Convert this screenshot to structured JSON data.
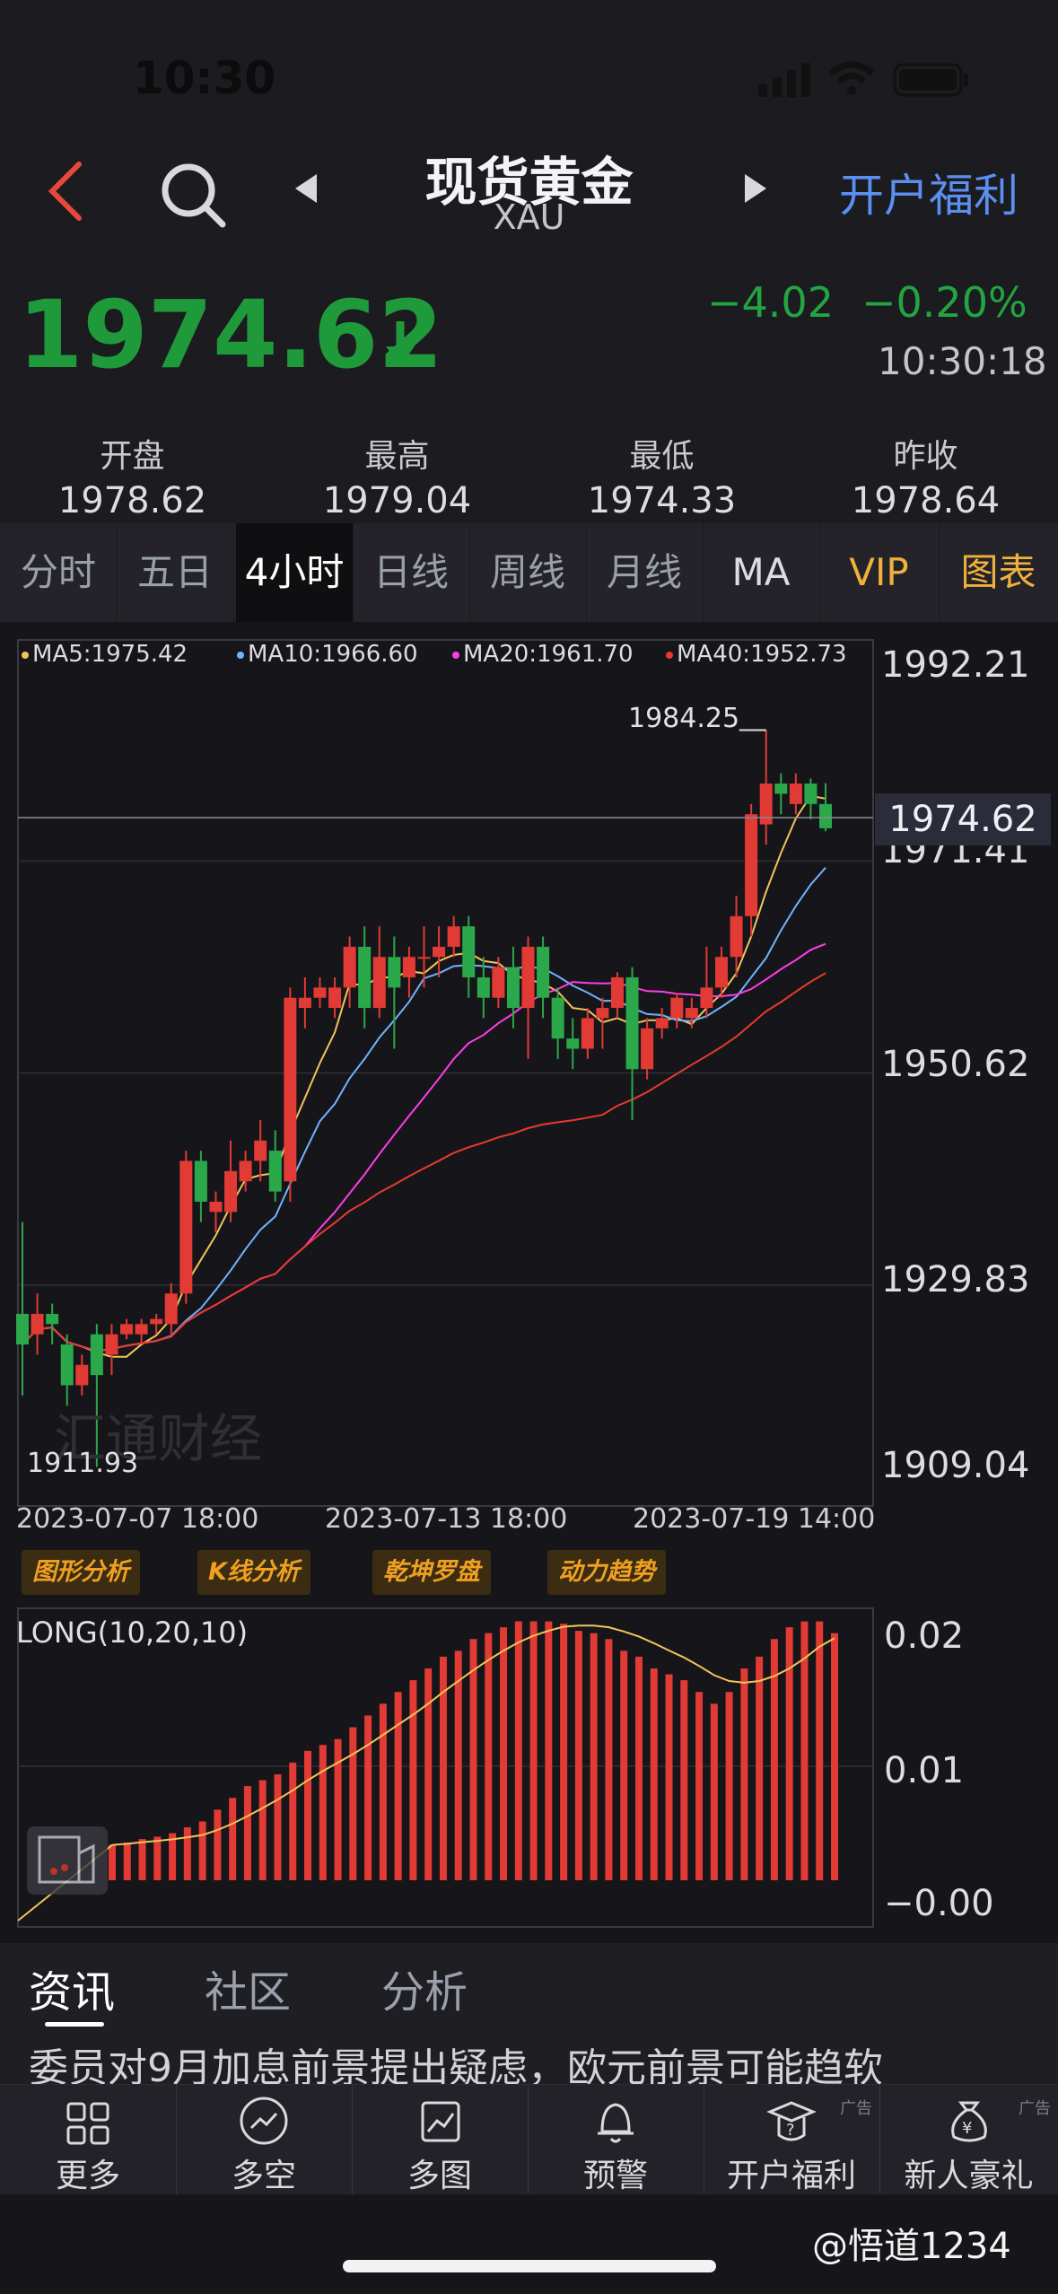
{
  "status_bar": {
    "time": "10:30"
  },
  "nav": {
    "title": "现货黄金",
    "subtitle": "XAU",
    "right_link": "开户福利"
  },
  "quote": {
    "price": "1974.62",
    "change": "−4.02",
    "change_pct": "−0.20%",
    "time": "10:30:18",
    "up_color": "#e23a34",
    "down_color": "#28a745"
  },
  "stats": [
    {
      "label": "开盘",
      "value": "1978.62"
    },
    {
      "label": "最高",
      "value": "1979.04"
    },
    {
      "label": "最低",
      "value": "1974.33"
    },
    {
      "label": "昨收",
      "value": "1978.64"
    }
  ],
  "period_tabs": [
    "分时",
    "五日",
    "4小时",
    "日线",
    "周线",
    "月线",
    "MA",
    "VIP",
    "图表"
  ],
  "active_tab": "4小时",
  "ma_legend": [
    {
      "label": "MA5:1975.42",
      "color": "#f2c45a"
    },
    {
      "label": "MA10:1966.60",
      "color": "#6fb3ff"
    },
    {
      "label": "MA20:1961.70",
      "color": "#ff3de6"
    },
    {
      "label": "MA40:1952.73",
      "color": "#e83a2e"
    }
  ],
  "price_axis": [
    "1992.21",
    "1971.41",
    "1950.62",
    "1929.83",
    "1909.04"
  ],
  "current_price_tag": "1974.62",
  "high_marker": "1984.25",
  "low_marker": "1911.93",
  "watermark": "汇通财经",
  "date_labels": [
    "2023-07-07 18:00",
    "2023-07-13 18:00",
    "2023-07-19 14:00"
  ],
  "analysis_badges": [
    "图形分析",
    "K线分析",
    "乾坤罗盘",
    "动力趋势"
  ],
  "indicator": {
    "name": "LONG(10,20,10)",
    "axis": [
      "0.02",
      "0.01",
      "−0.00"
    ]
  },
  "chart_data": {
    "type": "candlestick",
    "ylim": [
      1909.04,
      1992.21
    ],
    "candles": [
      [
        1927.0,
        1924.0,
        1936.0,
        1919.0
      ],
      [
        1925.0,
        1927.0,
        1929.0,
        1923.0
      ],
      [
        1927.0,
        1926.0,
        1928.0,
        1924.0
      ],
      [
        1924.0,
        1920.0,
        1925.0,
        1918.0
      ],
      [
        1920.0,
        1922.0,
        1923.0,
        1919.0
      ],
      [
        1925.0,
        1921.0,
        1926.0,
        1912.0
      ],
      [
        1923.0,
        1925.0,
        1926.0,
        1921.0
      ],
      [
        1925.0,
        1926.0,
        1926.5,
        1924.5
      ],
      [
        1925.0,
        1926.0,
        1926.5,
        1924.0
      ],
      [
        1926.0,
        1926.5,
        1927.0,
        1925.0
      ],
      [
        1926.0,
        1929.0,
        1930.0,
        1925.0
      ],
      [
        1929.0,
        1942.0,
        1943.0,
        1928.0
      ],
      [
        1942.0,
        1938.0,
        1943.0,
        1936.0
      ],
      [
        1937.0,
        1938.0,
        1939.0,
        1935.0
      ],
      [
        1937.0,
        1941.0,
        1944.0,
        1936.0
      ],
      [
        1940.0,
        1942.0,
        1943.0,
        1939.0
      ],
      [
        1942.0,
        1944.0,
        1946.0,
        1940.0
      ],
      [
        1943.0,
        1939.0,
        1945.0,
        1938.0
      ],
      [
        1940.0,
        1958.0,
        1959.0,
        1938.0
      ],
      [
        1957.0,
        1958.0,
        1960.0,
        1955.0
      ],
      [
        1958.0,
        1959.0,
        1960.0,
        1957.0
      ],
      [
        1957.0,
        1959.0,
        1960.0,
        1956.0
      ],
      [
        1959.0,
        1963.0,
        1964.0,
        1957.0
      ],
      [
        1963.0,
        1957.0,
        1965.0,
        1955.0
      ],
      [
        1957.0,
        1962.0,
        1965.0,
        1956.0
      ],
      [
        1962.0,
        1959.0,
        1964.0,
        1953.0
      ],
      [
        1960.0,
        1962.0,
        1963.0,
        1958.0
      ],
      [
        1962.0,
        1962.0,
        1965.0,
        1959.0
      ],
      [
        1962.0,
        1963.0,
        1965.0,
        1960.0
      ],
      [
        1963.0,
        1965.0,
        1966.0,
        1962.0
      ],
      [
        1965.0,
        1960.0,
        1966.0,
        1958.0
      ],
      [
        1960.0,
        1958.0,
        1962.0,
        1956.0
      ],
      [
        1958.0,
        1961.0,
        1962.0,
        1957.0
      ],
      [
        1961.0,
        1957.0,
        1963.0,
        1955.0
      ],
      [
        1957.0,
        1963.0,
        1964.0,
        1952.0
      ],
      [
        1963.0,
        1958.0,
        1964.0,
        1956.0
      ],
      [
        1958.0,
        1954.0,
        1959.0,
        1952.0
      ],
      [
        1954.0,
        1953.0,
        1956.0,
        1951.0
      ],
      [
        1953.0,
        1956.0,
        1957.0,
        1952.0
      ],
      [
        1956.0,
        1957.0,
        1958.0,
        1953.0
      ],
      [
        1957.0,
        1960.0,
        1960.5,
        1956.0
      ],
      [
        1960.0,
        1951.0,
        1961.0,
        1946.0
      ],
      [
        1951.0,
        1955.0,
        1956.0,
        1950.0
      ],
      [
        1955.0,
        1956.0,
        1957.0,
        1954.0
      ],
      [
        1956.0,
        1958.0,
        1958.5,
        1955.0
      ],
      [
        1956.0,
        1957.0,
        1958.0,
        1955.0
      ],
      [
        1957.0,
        1959.0,
        1963.0,
        1956.0
      ],
      [
        1959.0,
        1962.0,
        1963.0,
        1958.0
      ],
      [
        1962.0,
        1966.0,
        1968.0,
        1960.0
      ],
      [
        1966.0,
        1976.0,
        1977.0,
        1964.0
      ],
      [
        1975.0,
        1979.0,
        1984.25,
        1973.0
      ],
      [
        1979.0,
        1978.0,
        1980.0,
        1976.0
      ],
      [
        1977.0,
        1979.0,
        1980.0,
        1976.0
      ],
      [
        1979.0,
        1977.0,
        1979.5,
        1975.5
      ],
      [
        1977.0,
        1974.62,
        1979.04,
        1974.33
      ]
    ],
    "long_bars": [
      0.003,
      0.0032,
      0.0035,
      0.0037,
      0.004,
      0.0045,
      0.005,
      0.006,
      0.007,
      0.008,
      0.0085,
      0.009,
      0.01,
      0.011,
      0.0115,
      0.012,
      0.013,
      0.014,
      0.015,
      0.016,
      0.017,
      0.018,
      0.019,
      0.0195,
      0.0205,
      0.021,
      0.0215,
      0.022,
      0.022,
      0.022,
      0.0218,
      0.0212,
      0.021,
      0.0205,
      0.0195,
      0.019,
      0.018,
      0.0175,
      0.017,
      0.016,
      0.015,
      0.016,
      0.018,
      0.019,
      0.0205,
      0.0215,
      0.022,
      0.022,
      0.021
    ]
  },
  "news_tabs": [
    "资讯",
    "社区",
    "分析"
  ],
  "ticker": "委员对9月加息前景提出疑虑，欧元前景可能趋软",
  "toolbar": [
    {
      "label": "更多",
      "icon": "grid-icon"
    },
    {
      "label": "多空",
      "icon": "trend-icon"
    },
    {
      "label": "多图",
      "icon": "chart-icon"
    },
    {
      "label": "预警",
      "icon": "bell-icon"
    },
    {
      "label": "开户福利",
      "icon": "graduate-icon",
      "ad": "广告"
    },
    {
      "label": "新人豪礼",
      "icon": "money-bag-icon",
      "ad": "广告"
    }
  ],
  "footer_watermark": "@悟道1234"
}
